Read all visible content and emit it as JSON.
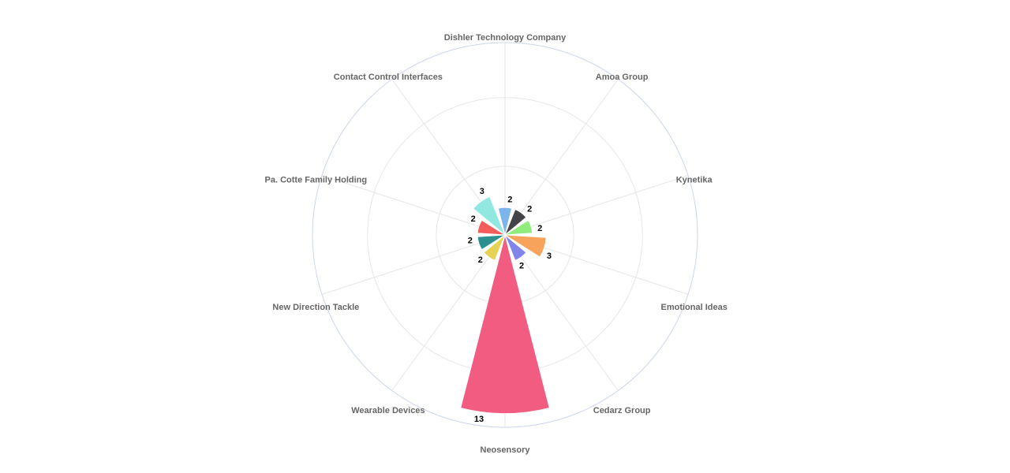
{
  "chart_data": {
    "type": "polar_area",
    "categories": [
      "Dishler Technology Company",
      "Amoa Group",
      "Kynetika",
      "Emotional Ideas",
      "Cedarz Group",
      "Neosensory",
      "Wearable Devices",
      "New Direction Tackle",
      "Pa. Cotte Family Holding",
      "Contact Control Interfaces"
    ],
    "values": [
      2,
      2,
      2,
      3,
      2,
      13,
      2,
      2,
      2,
      3
    ],
    "colors": [
      "#7cb5ec",
      "#434348",
      "#90ed7d",
      "#f7a35c",
      "#8085e9",
      "#f15c80",
      "#e4d354",
      "#2b908f",
      "#f45b5b",
      "#91e8e1"
    ],
    "ylim": [
      0,
      14
    ],
    "yticks": [
      0,
      5,
      10
    ],
    "grid": true
  }
}
